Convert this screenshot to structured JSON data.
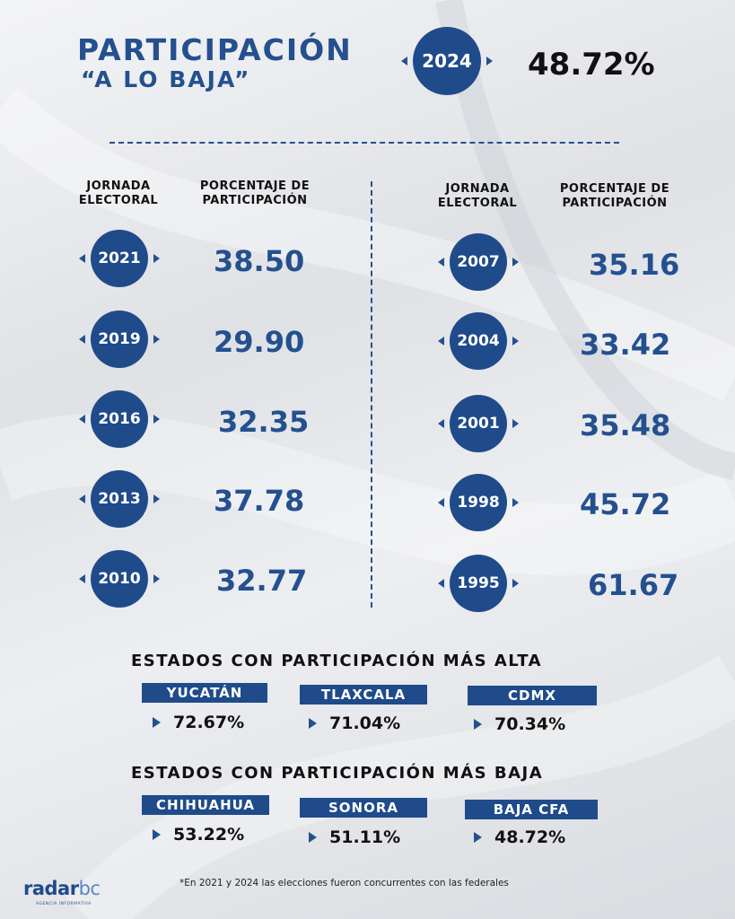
{
  "header": {
    "title_line1": "PARTICIPACIÓN",
    "title_line2": "“A LO BAJA”",
    "current_year": "2024",
    "current_value": "48.72%"
  },
  "columns": {
    "left_headers": [
      "JORNADA\nELECTORAL",
      "PORCENTAJE DE\nPARTICIPACIÓN"
    ],
    "right_headers": [
      "JORNADA\nELECTORAL",
      "PORCENTAJE DE\nPARTICIPACIÓN"
    ]
  },
  "left_rows": [
    {
      "year": "2021",
      "value": "38.50"
    },
    {
      "year": "2019",
      "value": "29.90"
    },
    {
      "year": "2016",
      "value": "32.35"
    },
    {
      "year": "2013",
      "value": "37.78"
    },
    {
      "year": "2010",
      "value": "32.77"
    }
  ],
  "right_rows": [
    {
      "year": "2007",
      "value": "35.16"
    },
    {
      "year": "2004",
      "value": "33.42"
    },
    {
      "year": "2001",
      "value": "35.48"
    },
    {
      "year": "1998",
      "value": "45.72"
    },
    {
      "year": "1995",
      "value": "61.67"
    }
  ],
  "high": {
    "title": "ESTADOS CON PARTICIPACIÓN MÁS ALTA",
    "states": [
      {
        "name": "YUCATÁN",
        "value": "72.67%"
      },
      {
        "name": "TLAXCALA",
        "value": "71.04%"
      },
      {
        "name": "CDMX",
        "value": "70.34%"
      }
    ]
  },
  "low": {
    "title": "ESTADOS CON PARTICIPACIÓN MÁS BAJA",
    "states": [
      {
        "name": "CHIHUAHUA",
        "value": "53.22%"
      },
      {
        "name": "SONORA",
        "value": "51.11%"
      },
      {
        "name": "BAJA CFA",
        "value": "48.72%"
      }
    ]
  },
  "footer": {
    "note": "*En 2021 y 2024 las elecciones fueron concurrentes con las federales",
    "logo_main": "radar",
    "logo_accent": "bc",
    "logo_sub": "AGENCIA INFORMATIVA"
  },
  "colors": {
    "accent": "#1f4b8a",
    "accent_text": "#24508f"
  }
}
